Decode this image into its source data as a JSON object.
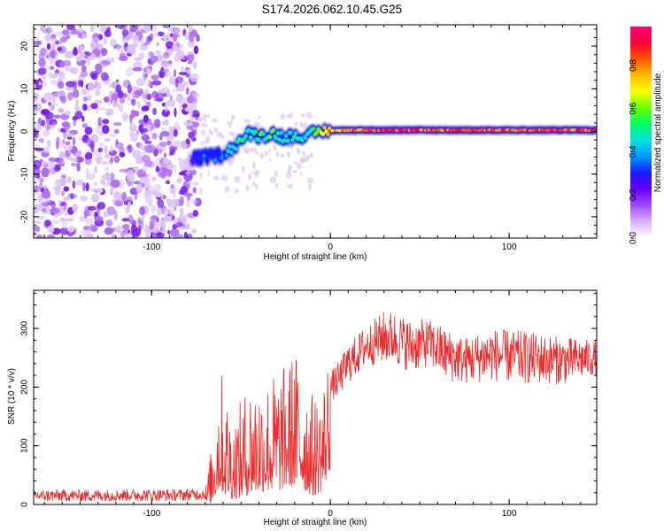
{
  "title": "S174.2026.062.10.45.G25",
  "chart_data": [
    {
      "type": "heatmap",
      "name": "spectrogram",
      "xlabel": "Height of straight line (km)",
      "ylabel": "Frequency (Hz)",
      "xlim": [
        -166,
        149
      ],
      "ylim": [
        -25,
        25
      ],
      "xticks": [
        "-100",
        "0",
        "100"
      ],
      "yticks": [
        "-20",
        "-10",
        "0",
        "10",
        "20"
      ],
      "colorbar": {
        "label": "Normalized spectral amplitude",
        "range": [
          0,
          0.98
        ],
        "ticks": [
          "0.0",
          "0.2",
          "0.4",
          "0.6",
          "0.8"
        ],
        "colors": [
          "#ffffff",
          "#d9b3ff",
          "#a24cf5",
          "#6600ff",
          "#1a1aff",
          "#0099ff",
          "#00e0e0",
          "#00ff66",
          "#66ff00",
          "#ffff00",
          "#ffbb00",
          "#ff5500",
          "#ff0033",
          "#ff0080"
        ]
      },
      "signal_track": {
        "start_height_km": -77,
        "x": [
          -77,
          -70,
          -62,
          -55,
          -50,
          -45,
          -40,
          -32,
          -25,
          -18,
          -14,
          -10,
          -5,
          0,
          10,
          30,
          60,
          100,
          149
        ],
        "frequency_hz": [
          -6.5,
          -6,
          -5.5,
          -4,
          -2,
          -0.5,
          -1,
          -0.5,
          -1.5,
          -0.5,
          -2,
          -0.5,
          0,
          0.2,
          0.3,
          0.3,
          0.3,
          0.3,
          0.3
        ],
        "amplitude": [
          0.3,
          0.35,
          0.35,
          0.45,
          0.55,
          0.5,
          0.55,
          0.55,
          0.5,
          0.5,
          0.45,
          0.6,
          0.7,
          0.8,
          0.85,
          0.9,
          0.88,
          0.9,
          0.9
        ]
      },
      "noise_region_km": [
        -166,
        -77
      ]
    },
    {
      "type": "line",
      "name": "snr",
      "xlabel": "Height of straight line (km)",
      "ylabel": "SNR (10 * v/v)",
      "xlim": [
        -166,
        149
      ],
      "ylim": [
        0,
        365
      ],
      "xticks": [
        "-100",
        "0",
        "100"
      ],
      "yticks": [
        "0",
        "100",
        "200",
        "300"
      ],
      "color": "#ee2a2a",
      "series": [
        {
          "name": "SNR",
          "x": [
            -166,
            -140,
            -110,
            -85,
            -70,
            -66,
            -62,
            -58,
            -55,
            -50,
            -45,
            -40,
            -35,
            -30,
            -25,
            -20,
            -15,
            -10,
            -5,
            0,
            5,
            10,
            20,
            30,
            35,
            45,
            55,
            65,
            75,
            90,
            110,
            130,
            149
          ],
          "base": [
            15,
            15,
            16,
            16,
            18,
            45,
            100,
            70,
            55,
            60,
            80,
            85,
            95,
            90,
            110,
            120,
            100,
            70,
            90,
            200,
            215,
            240,
            270,
            285,
            285,
            270,
            275,
            255,
            245,
            255,
            250,
            245,
            250
          ],
          "noise": [
            10,
            10,
            10,
            10,
            10,
            40,
            80,
            70,
            60,
            70,
            80,
            80,
            70,
            80,
            70,
            80,
            80,
            70,
            60,
            25,
            30,
            35,
            35,
            45,
            45,
            45,
            40,
            45,
            40,
            45,
            45,
            40,
            30
          ]
        }
      ]
    }
  ]
}
